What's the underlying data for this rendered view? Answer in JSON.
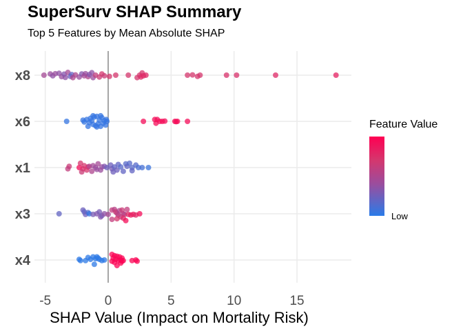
{
  "chart_data": {
    "type": "scatter",
    "subtype": "beeswarm",
    "title": "SuperSurv SHAP Summary",
    "subtitle": "Top 5 Features by Mean Absolute SHAP",
    "xlabel": "SHAP Value (Impact on Mortality Risk)",
    "ylabel": "",
    "xlim": [
      -5.5,
      19
    ],
    "x_ticks": [
      -5,
      0,
      5,
      10,
      15
    ],
    "x_tick_labels": [
      "-5",
      "0",
      "5",
      "10",
      "15"
    ],
    "grid": true,
    "zero_line": 0,
    "categories": [
      "x8",
      "x6",
      "x1",
      "x3",
      "x4"
    ],
    "legend": {
      "title": "Feature Value",
      "low_label": "Low",
      "low_color": "#2a7be8",
      "high_color": "#ff0052",
      "placement": "right"
    },
    "series": [
      {
        "name": "x8",
        "points": [
          [
            -5.1,
            0,
            0.55
          ],
          [
            -4.6,
            0.1,
            0.5
          ],
          [
            -4.4,
            -0.05,
            0.45
          ],
          [
            -4.2,
            0.12,
            0.5
          ],
          [
            -3.9,
            0.15,
            0.45
          ],
          [
            -3.7,
            -0.12,
            0.5
          ],
          [
            -3.5,
            0.08,
            0.4
          ],
          [
            -3.4,
            -0.18,
            0.45
          ],
          [
            -3.2,
            0.22,
            0.55
          ],
          [
            -3.0,
            -0.1,
            0.3
          ],
          [
            -2.9,
            0.05,
            0.25
          ],
          [
            -2.8,
            -0.2,
            0.6
          ],
          [
            -2.6,
            0.02,
            0.6
          ],
          [
            -2.3,
            -0.15,
            0.5
          ],
          [
            -2.1,
            0.1,
            0.4
          ],
          [
            -1.9,
            -0.05,
            0.55
          ],
          [
            -1.8,
            0.12,
            0.5
          ],
          [
            -1.6,
            -0.12,
            0.6
          ],
          [
            -1.5,
            0.05,
            0.4
          ],
          [
            -1.3,
            0.2,
            0.45
          ],
          [
            -1.2,
            -0.2,
            0.5
          ],
          [
            -1.0,
            0,
            0.7
          ],
          [
            -0.7,
            -0.15,
            0.75
          ],
          [
            -0.5,
            0.1,
            0.8
          ],
          [
            -0.3,
            -0.05,
            0.75
          ],
          [
            0.1,
            -0.1,
            0.8
          ],
          [
            0.6,
            0,
            0.8
          ],
          [
            1.6,
            0,
            0.8
          ],
          [
            2.5,
            0,
            0.8
          ],
          [
            2.7,
            0.18,
            0.8
          ],
          [
            2.6,
            -0.15,
            0.85
          ],
          [
            2.8,
            -0.05,
            0.85
          ],
          [
            2.3,
            -0.2,
            0.8
          ],
          [
            3.0,
            0,
            0.85
          ],
          [
            6.3,
            0,
            0.8
          ],
          [
            6.7,
            0.02,
            0.8
          ],
          [
            7.1,
            -0.1,
            0.8
          ],
          [
            7.3,
            0,
            0.8
          ],
          [
            9.4,
            0,
            0.82
          ],
          [
            10.2,
            0,
            0.82
          ],
          [
            13.3,
            0,
            0.85
          ],
          [
            18.1,
            0,
            0.88
          ]
        ]
      },
      {
        "name": "x6",
        "points": [
          [
            -3.3,
            0,
            0.05
          ],
          [
            -2.0,
            0.1,
            0.05
          ],
          [
            -1.9,
            -0.05,
            0.05
          ],
          [
            -1.7,
            0.15,
            0.05
          ],
          [
            -1.5,
            -0.1,
            0.05
          ],
          [
            -1.4,
            0.25,
            0.05
          ],
          [
            -1.3,
            0.05,
            0.05
          ],
          [
            -1.2,
            -0.25,
            0.05
          ],
          [
            -1.1,
            0.35,
            0.05
          ],
          [
            -1.0,
            -0.35,
            0.05
          ],
          [
            -0.9,
            0.4,
            0.05
          ],
          [
            -0.8,
            -0.2,
            0.05
          ],
          [
            -0.7,
            0.1,
            0.05
          ],
          [
            -0.6,
            -0.4,
            0.05
          ],
          [
            -0.5,
            0.3,
            0.05
          ],
          [
            -0.4,
            -0.15,
            0.05
          ],
          [
            -0.3,
            0.05,
            0.05
          ],
          [
            -0.2,
            -0.3,
            0.05
          ],
          [
            -0.15,
            0.15,
            0.05
          ],
          [
            -0.1,
            0,
            0.05
          ],
          [
            -1.6,
            -0.4,
            0.05
          ],
          [
            -1.2,
            0.45,
            0.05
          ],
          [
            -0.9,
            -0.45,
            0.05
          ],
          [
            -0.6,
            0.45,
            0.05
          ],
          [
            2.8,
            0,
            0.95
          ],
          [
            3.7,
            0.15,
            0.95
          ],
          [
            3.9,
            0.15,
            0.95
          ],
          [
            3.8,
            -0.15,
            0.95
          ],
          [
            4.1,
            0,
            0.95
          ],
          [
            4.3,
            0,
            0.95
          ],
          [
            4.5,
            0.02,
            0.95
          ],
          [
            5.3,
            0,
            0.95
          ],
          [
            5.5,
            0,
            0.95
          ],
          [
            5.4,
            -0.02,
            0.95
          ],
          [
            6.3,
            0,
            0.95
          ]
        ]
      },
      {
        "name": "x1",
        "points": [
          [
            -3.1,
            0.1,
            0.75
          ],
          [
            -3.2,
            -0.1,
            0.7
          ],
          [
            -2.3,
            0,
            0.95
          ],
          [
            -2.2,
            0.35,
            0.8
          ],
          [
            -2.0,
            -0.1,
            0.85
          ],
          [
            -2.1,
            -0.35,
            0.75
          ],
          [
            -1.9,
            0.15,
            0.8
          ],
          [
            -1.7,
            -0.2,
            0.8
          ],
          [
            -1.6,
            0.05,
            0.85
          ],
          [
            -1.5,
            0.1,
            0.6
          ],
          [
            -1.3,
            -0.3,
            0.6
          ],
          [
            -1.2,
            0.15,
            0.55
          ],
          [
            -1.0,
            0,
            0.5
          ],
          [
            -0.9,
            -0.15,
            0.5
          ],
          [
            -0.8,
            0.3,
            0.55
          ],
          [
            -0.6,
            -0.2,
            0.5
          ],
          [
            -0.5,
            0.05,
            0.5
          ],
          [
            -0.3,
            0.1,
            0.4
          ],
          [
            -0.1,
            0,
            0.3
          ],
          [
            0.2,
            0.2,
            0.3
          ],
          [
            0.3,
            -0.1,
            0.35
          ],
          [
            0.4,
            -0.35,
            0.3
          ],
          [
            0.5,
            0.05,
            0.25
          ],
          [
            0.7,
            -0.2,
            0.3
          ],
          [
            0.8,
            0.25,
            0.25
          ],
          [
            1.0,
            0.05,
            0.2
          ],
          [
            1.2,
            -0.3,
            0.25
          ],
          [
            1.4,
            0.3,
            0.2
          ],
          [
            1.5,
            0.1,
            0.25
          ],
          [
            1.7,
            0.35,
            0.2
          ],
          [
            1.9,
            0,
            0.2
          ],
          [
            1.9,
            -0.25,
            0.25
          ],
          [
            2.2,
            0.2,
            0.2
          ],
          [
            2.4,
            0,
            0.15
          ],
          [
            2.7,
            0,
            0.12
          ],
          [
            3.2,
            0,
            0.08
          ]
        ]
      },
      {
        "name": "x3",
        "points": [
          [
            -3.9,
            0,
            0.25
          ],
          [
            -2.0,
            0.3,
            0.3
          ],
          [
            -1.9,
            0.15,
            0.25
          ],
          [
            -1.8,
            -0.05,
            0.3
          ],
          [
            -1.6,
            0.1,
            0.2
          ],
          [
            -1.5,
            0,
            0.05
          ],
          [
            -1.2,
            -0.05,
            0.35
          ],
          [
            -0.9,
            0,
            0.4
          ],
          [
            -0.7,
            0.15,
            0.35
          ],
          [
            -0.6,
            -0.25,
            0.4
          ],
          [
            -0.5,
            -0.15,
            0.35
          ],
          [
            -0.3,
            0,
            0.45
          ],
          [
            0,
            -0.05,
            0.55
          ],
          [
            0.3,
            0.3,
            0.7
          ],
          [
            0.5,
            0.35,
            0.65
          ],
          [
            0.6,
            0.15,
            0.75
          ],
          [
            0.7,
            0.05,
            0.7
          ],
          [
            0.8,
            -0.1,
            0.65
          ],
          [
            0.9,
            0.25,
            0.6
          ],
          [
            1.0,
            -0.25,
            0.7
          ],
          [
            1.1,
            0.3,
            0.75
          ],
          [
            1.2,
            0,
            0.7
          ],
          [
            1.3,
            -0.05,
            0.65
          ],
          [
            1.5,
            0.35,
            0.7
          ],
          [
            1.6,
            -0.05,
            0.85
          ],
          [
            1.8,
            -0.1,
            0.9
          ],
          [
            2.0,
            -0.05,
            0.9
          ],
          [
            2.2,
            -0.1,
            0.85
          ],
          [
            2.5,
            0,
            0.95
          ],
          [
            1.2,
            -0.35,
            0.85
          ],
          [
            0.7,
            -0.4,
            0.8
          ],
          [
            1.4,
            -0.55,
            0.95
          ],
          [
            0.3,
            -0.45,
            0.7
          ]
        ]
      },
      {
        "name": "x4",
        "points": [
          [
            -2.3,
            0.05,
            0.02
          ],
          [
            -2.2,
            -0.05,
            0.02
          ],
          [
            -1.8,
            -0.05,
            0.02
          ],
          [
            -1.6,
            0.2,
            0.02
          ],
          [
            -1.4,
            0.05,
            0.02
          ],
          [
            -1.2,
            0.25,
            0.02
          ],
          [
            -1.0,
            0.1,
            0.02
          ],
          [
            -0.9,
            0.25,
            0.02
          ],
          [
            -0.7,
            0.05,
            0.02
          ],
          [
            -0.5,
            -0.05,
            0.02
          ],
          [
            -0.3,
            0,
            0.02
          ],
          [
            -1.1,
            -0.35,
            0.02
          ],
          [
            -0.8,
            0.15,
            0.02
          ],
          [
            0.3,
            0.45,
            0.98
          ],
          [
            0.5,
            0.35,
            0.98
          ],
          [
            0.7,
            0.3,
            0.98
          ],
          [
            0.9,
            0.25,
            0.98
          ],
          [
            1.1,
            0.15,
            0.98
          ],
          [
            0.4,
            0.15,
            0.98
          ],
          [
            0.6,
            0.05,
            0.98
          ],
          [
            0.8,
            -0.05,
            0.98
          ],
          [
            1.0,
            0,
            0.98
          ],
          [
            1.2,
            -0.05,
            0.98
          ],
          [
            0.3,
            -0.1,
            0.98
          ],
          [
            0.5,
            -0.2,
            0.98
          ],
          [
            1.1,
            -0.1,
            0.98
          ],
          [
            0.7,
            -0.45,
            0.98
          ],
          [
            1.0,
            -0.25,
            0.98
          ],
          [
            2.2,
            0,
            0.98
          ],
          [
            2.3,
            -0.1,
            0.98
          ],
          [
            1.9,
            -0.05,
            0.98
          ]
        ]
      }
    ]
  }
}
